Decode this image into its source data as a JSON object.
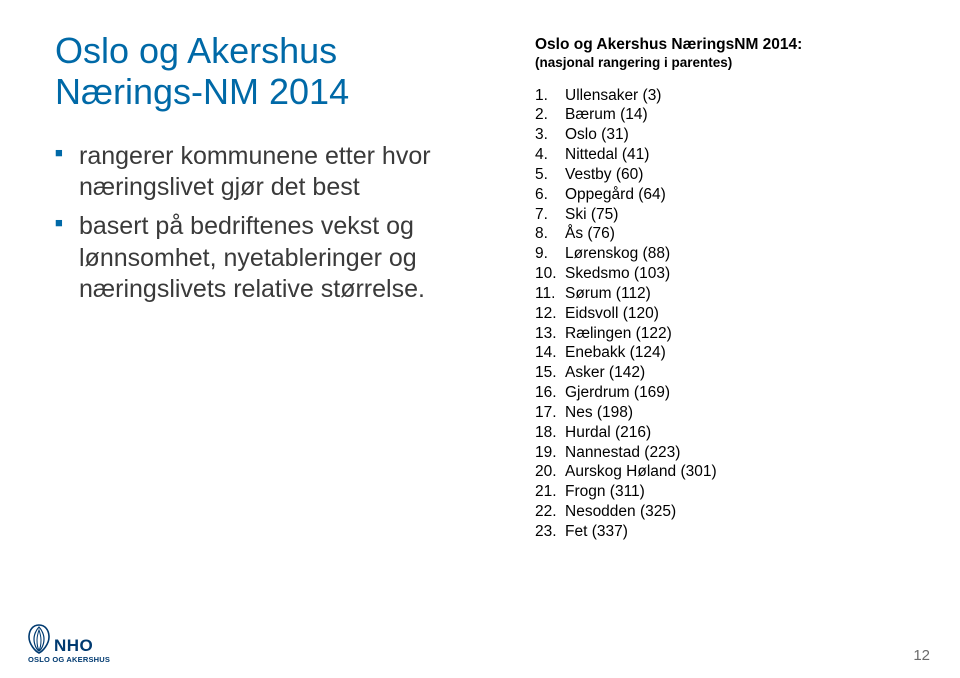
{
  "title": "Oslo og Akershus\nNærings-NM 2014",
  "bullets": [
    "rangerer kommunene etter hvor næringslivet gjør det best",
    "basert på bedriftenes vekst og lønnsomhet, nyetableringer og næringslivets relative størrelse."
  ],
  "right_heading": "Oslo og Akershus NæringsNM 2014:",
  "right_sub": "(nasjonal rangering i parentes)",
  "rankings": [
    "Ullensaker (3)",
    "Bærum (14)",
    "Oslo (31)",
    "Nittedal (41)",
    "Vestby (60)",
    "Oppegård (64)",
    "Ski (75)",
    "Ås (76)",
    "Lørenskog (88)",
    "Skedsmo (103)",
    "Sørum (112)",
    "Eidsvoll (120)",
    "Rælingen (122)",
    "Enebakk (124)",
    "Asker (142)",
    "Gjerdrum (169)",
    "Nes (198)",
    "Hurdal (216)",
    "Nannestad (223)",
    "Aurskog Høland (301)",
    "Frogn (311)",
    "Nesodden (325)",
    "Fet (337)"
  ],
  "logo_main": "NHO",
  "logo_sub": "OSLO OG AKERSHUS",
  "page_number": "12",
  "colors": {
    "brand": "#0069a7",
    "logo": "#003a70",
    "text": "#3a3a3a"
  }
}
